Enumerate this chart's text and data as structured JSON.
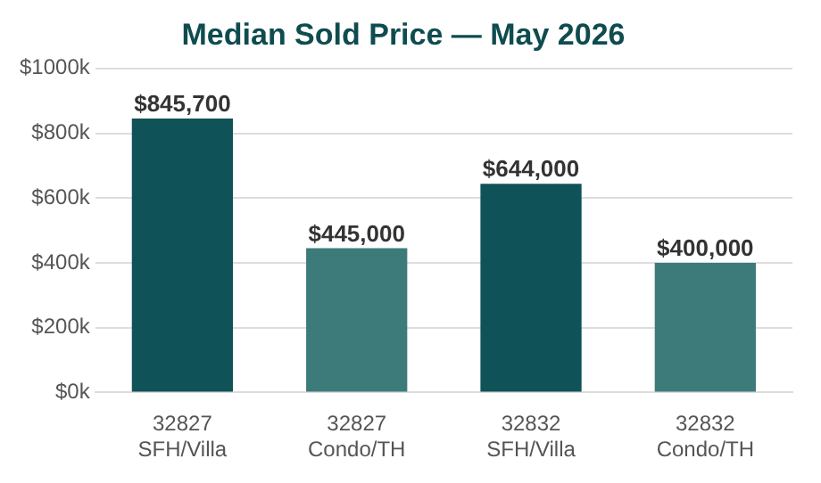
{
  "chart_data": {
    "type": "bar",
    "title": "Median Sold Price — May 2026",
    "categories": [
      "32827\nSFH/Villa",
      "32827\nCondo/TH",
      "32832\nSFH/Villa",
      "32832\nCondo/TH"
    ],
    "values": [
      845700,
      445000,
      644000,
      400000
    ],
    "colors": [
      "#0f5257",
      "#3d7b7b",
      "#0f5257",
      "#3d7b7b"
    ],
    "value_labels": [
      "$845,700",
      "$445,000",
      "$644,000",
      "$400,000"
    ],
    "ylim": [
      0,
      1000000
    ],
    "yticks": [
      {
        "value": 0,
        "label": "$0k"
      },
      {
        "value": 200000,
        "label": "$200k"
      },
      {
        "value": 400000,
        "label": "$400k"
      },
      {
        "value": 600000,
        "label": "$600k"
      },
      {
        "value": 800000,
        "label": "$800k"
      },
      {
        "value": 1000000,
        "label": "$1000k"
      }
    ],
    "grid": "y",
    "legend": false
  }
}
